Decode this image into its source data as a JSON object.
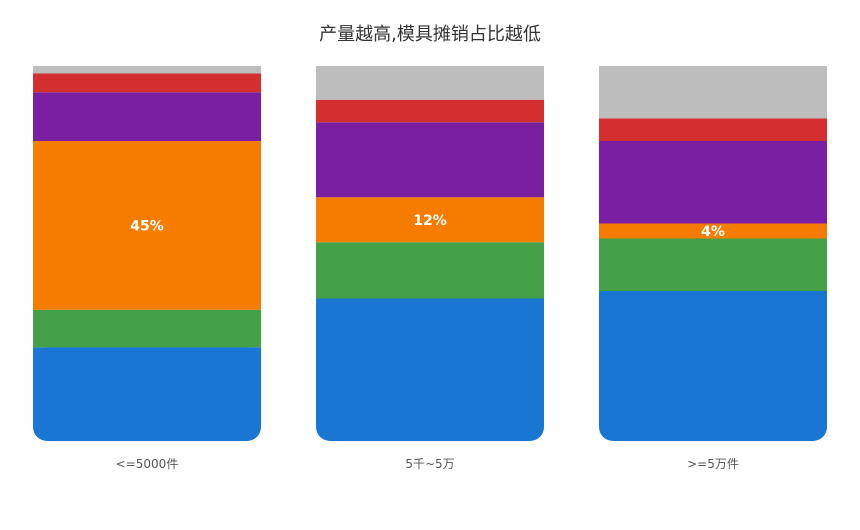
{
  "chart_data": {
    "type": "bar",
    "stacked": true,
    "percent": true,
    "title": "产量越高,模具摊销占比越低",
    "categories": [
      "<=5000件",
      "5千~5万",
      ">=5万件"
    ],
    "series": [
      {
        "color": "#1976D2",
        "values": [
          25,
          38,
          40
        ]
      },
      {
        "color": "#43A047",
        "values": [
          10,
          15,
          14
        ]
      },
      {
        "color": "#F57C00",
        "values": [
          45,
          12,
          4
        ],
        "labels": [
          "45%",
          "12%",
          "4%"
        ]
      },
      {
        "color": "#7B1FA2",
        "values": [
          13,
          20,
          22
        ]
      },
      {
        "color": "#D32F2F",
        "values": [
          5,
          6,
          6
        ]
      },
      {
        "color": "#BDBDBD",
        "values": [
          2,
          9,
          14
        ]
      }
    ],
    "ylim": [
      0,
      100
    ],
    "grid": false,
    "legend": "none"
  }
}
